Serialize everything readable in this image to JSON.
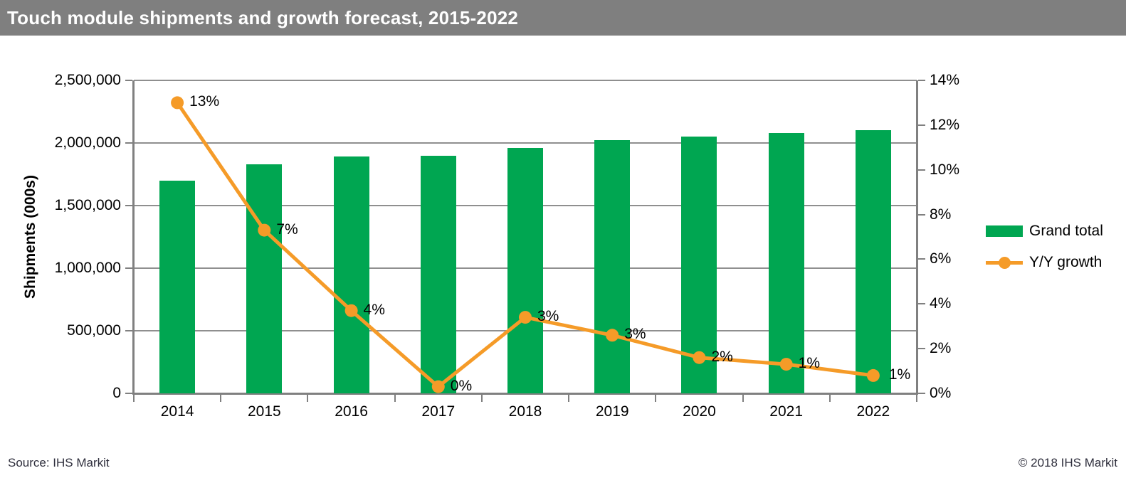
{
  "header": {
    "title": "Touch module shipments and growth forecast, 2015-2022"
  },
  "footer": {
    "source": "Source: IHS Markit",
    "copyright": "© 2018 IHS Markit"
  },
  "colors": {
    "bar_green": "#00A651",
    "line_orange": "#F59B28",
    "axis_gray": "#808080",
    "grid_gray": "#8F8F8F",
    "title_bar_bg": "#7F7F7F",
    "title_bar_fg": "#FFFFFF"
  },
  "chart_data": {
    "type": "combo",
    "subtypes": [
      "bar",
      "line"
    ],
    "categories": [
      "2014",
      "2015",
      "2016",
      "2017",
      "2018",
      "2019",
      "2020",
      "2021",
      "2022"
    ],
    "series": [
      {
        "name": "Grand total",
        "type": "bar",
        "axis": "left",
        "color": "#00A651",
        "values": [
          1700000,
          1830000,
          1890000,
          1900000,
          1960000,
          2020000,
          2050000,
          2080000,
          2100000
        ]
      },
      {
        "name": "Y/Y growth",
        "type": "line",
        "axis": "right",
        "color": "#F59B28",
        "values": [
          13.0,
          7.3,
          3.7,
          0.3,
          3.4,
          2.6,
          1.6,
          1.3,
          0.8
        ],
        "point_labels": [
          "13%",
          "7%",
          "4%",
          "0%",
          "3%",
          "3%",
          "2%",
          "1%",
          "1%"
        ]
      }
    ],
    "left_axis": {
      "label": "Shipments (000s)",
      "min": 0,
      "max": 2500000,
      "tick_step": 500000,
      "tick_labels_top_to_bottom": [
        "2,500,000",
        "2,000,000",
        "1,500,000",
        "1,000,000",
        "500,000",
        "0"
      ]
    },
    "right_axis": {
      "label": "",
      "min": 0,
      "max": 14,
      "tick_step": 2,
      "tick_labels_bottom_to_top": [
        "0%",
        "2%",
        "4%",
        "6%",
        "8%",
        "10%",
        "12%",
        "14%"
      ]
    },
    "grid": true,
    "legend_position": "right",
    "legend": [
      "Grand total",
      "Y/Y growth"
    ]
  }
}
